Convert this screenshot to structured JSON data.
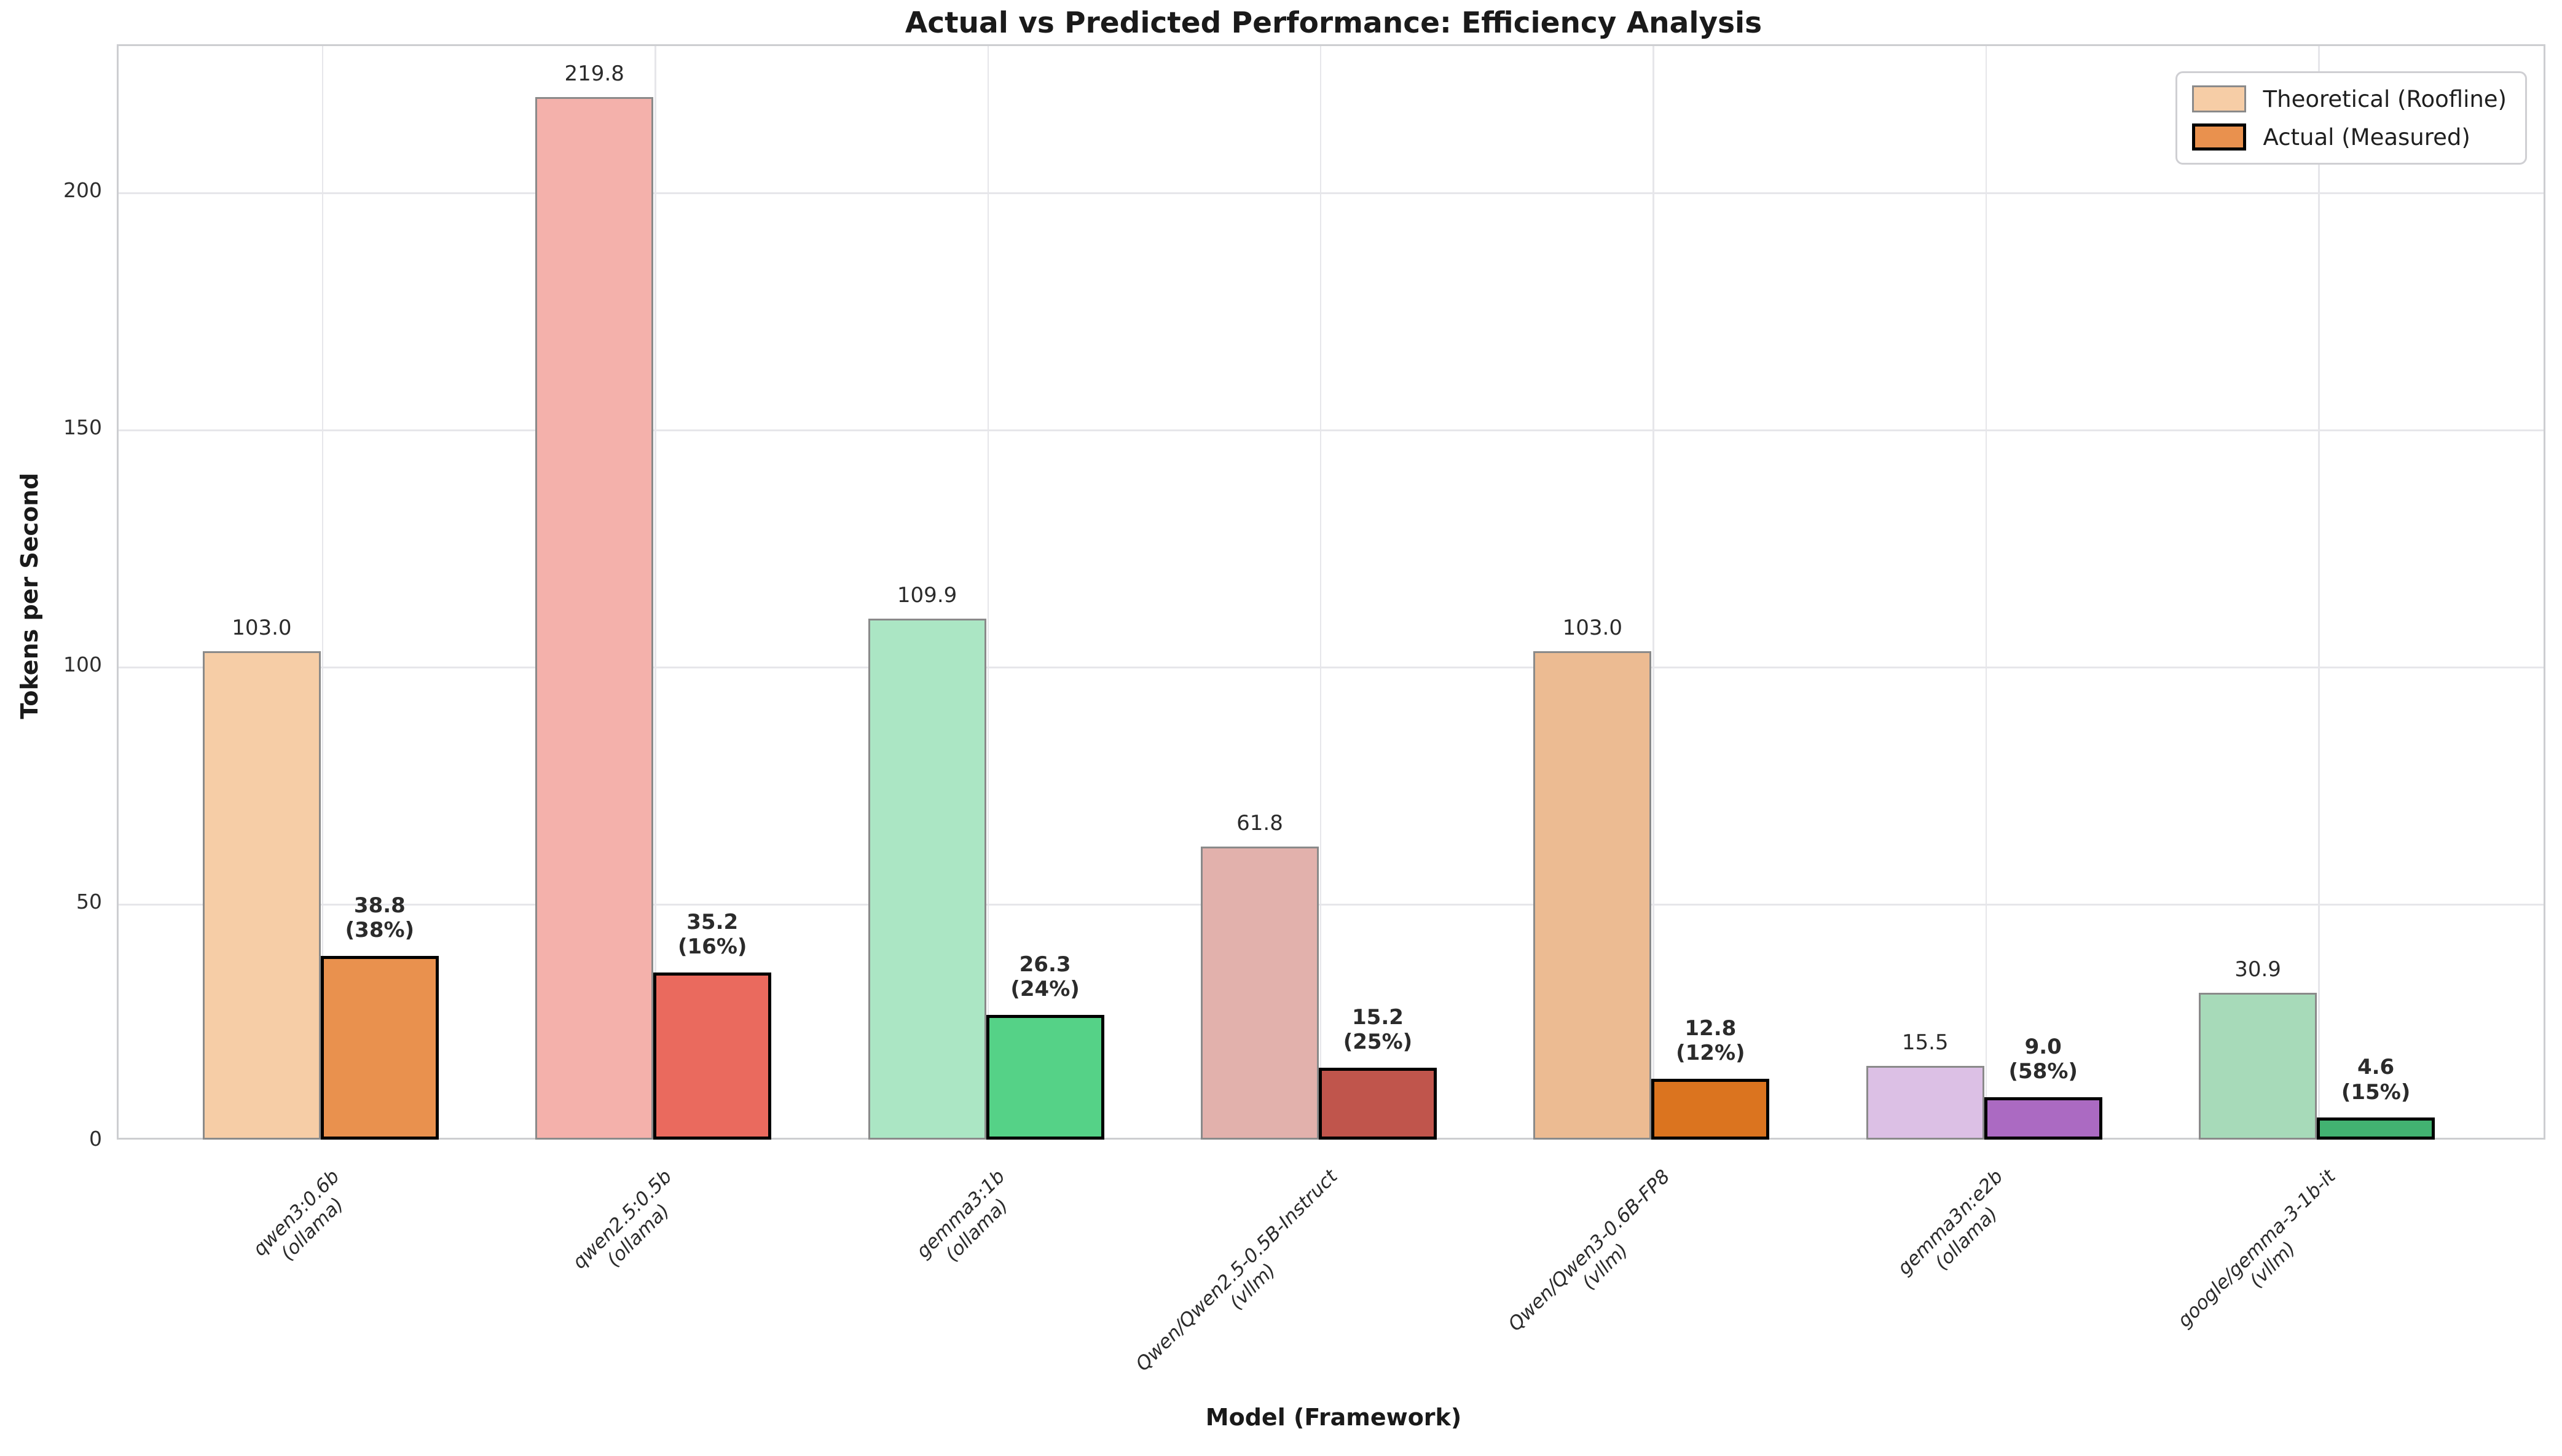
{
  "chart_data": {
    "type": "bar",
    "title": "Actual vs Predicted Performance: Efficiency Analysis",
    "xlabel": "Model (Framework)",
    "ylabel": "Tokens per Second",
    "ylim": [
      0,
      231
    ],
    "yticks": [
      0,
      50,
      100,
      150,
      200
    ],
    "grid": true,
    "legend": {
      "position": "upper right",
      "entries": [
        "Theoretical (Roofline)",
        "Actual (Measured)"
      ]
    },
    "categories": [
      {
        "model": "qwen3:0.6b",
        "framework": "(ollama)"
      },
      {
        "model": "qwen2.5:0.5b",
        "framework": "(ollama)"
      },
      {
        "model": "gemma3:1b",
        "framework": "(ollama)"
      },
      {
        "model": "Qwen/Qwen2.5-0.5B-Instruct",
        "framework": "(vllm)"
      },
      {
        "model": "Qwen/Qwen3-0.6B-FP8",
        "framework": "(vllm)"
      },
      {
        "model": "gemma3n:e2b",
        "framework": "(ollama)"
      },
      {
        "model": "google/gemma-3-1b-it",
        "framework": "(vllm)"
      }
    ],
    "series": [
      {
        "name": "Theoretical (Roofline)",
        "values": [
          103.0,
          219.8,
          109.9,
          61.8,
          103.0,
          15.5,
          30.9
        ]
      },
      {
        "name": "Actual (Measured)",
        "values": [
          38.8,
          35.2,
          26.3,
          15.2,
          12.8,
          9.0,
          4.6
        ]
      }
    ],
    "efficiency_pct": [
      38,
      16,
      24,
      25,
      12,
      58,
      15
    ],
    "group_colors": [
      {
        "theoretical": "#f6cda6",
        "actual": "#e9914e"
      },
      {
        "theoretical": "#f4b1ab",
        "actual": "#ea6a5e"
      },
      {
        "theoretical": "#abe6c4",
        "actual": "#55d287"
      },
      {
        "theoretical": "#e2b1ac",
        "actual": "#c0554c"
      },
      {
        "theoretical": "#ecbb92",
        "actual": "#db741f"
      },
      {
        "theoretical": "#dcc0e5",
        "actual": "#ab6ac2"
      },
      {
        "theoretical": "#a7dab9",
        "actual": "#42b271"
      }
    ],
    "style": {
      "theoretical_edge": "#8a8a8a",
      "actual_edge": "#000000",
      "gridline": "#e6e6ea",
      "spine": "#cdced1",
      "text": "#2b2b2b",
      "background": "#ffffff"
    }
  }
}
